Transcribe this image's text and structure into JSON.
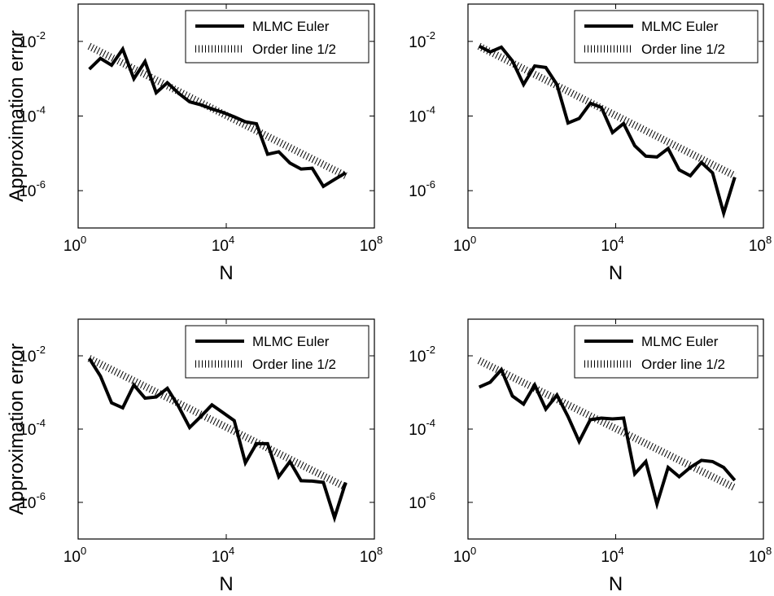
{
  "figure": {
    "background": "#ffffff",
    "line_color": "#000000"
  },
  "chart_data": [
    {
      "type": "line",
      "xlabel": "N",
      "ylabel": "Approximation error",
      "xscale": "log",
      "yscale": "log",
      "xlim": [
        1,
        100000000
      ],
      "ylim": [
        1e-07,
        0.1
      ],
      "x_ticks": [
        {
          "base": "10",
          "exp": "0"
        },
        {
          "base": "10",
          "exp": "4"
        },
        {
          "base": "10",
          "exp": "8"
        }
      ],
      "y_ticks": [
        {
          "base": "10",
          "exp": "-6"
        },
        {
          "base": "10",
          "exp": "-4"
        },
        {
          "base": "10",
          "exp": "-2"
        }
      ],
      "grid": false,
      "legend_position": "top-right",
      "series": [
        {
          "name": "MLMC Euler",
          "style": "solid-thick",
          "x": [
            2,
            4,
            8,
            16,
            32,
            64,
            128,
            256,
            512,
            1024,
            2048,
            4096,
            8192,
            16384,
            32768,
            65536,
            131072,
            262144,
            524288,
            1048576,
            2097152,
            4194304,
            8388608,
            16777216
          ],
          "y": [
            0.0018,
            0.0035,
            0.0023,
            0.0062,
            0.001,
            0.0029,
            0.00042,
            0.00078,
            0.00041,
            0.00024,
            0.0002,
            0.000155,
            0.000125,
            9.5e-05,
            7e-05,
            6.2e-05,
            9.5e-06,
            1.1e-05,
            5.5e-06,
            3.8e-06,
            4e-06,
            1.3e-06,
            2e-06,
            3e-06
          ]
        },
        {
          "name": "Order line 1/2",
          "style": "dotted",
          "x": [
            2,
            16777216
          ],
          "y": [
            0.0074,
            2.5e-06
          ]
        }
      ]
    },
    {
      "type": "line",
      "xlabel": "N",
      "ylabel": "",
      "xscale": "log",
      "yscale": "log",
      "xlim": [
        1,
        100000000
      ],
      "ylim": [
        1e-07,
        0.1
      ],
      "x_ticks": [
        {
          "base": "10",
          "exp": "0"
        },
        {
          "base": "10",
          "exp": "4"
        },
        {
          "base": "10",
          "exp": "8"
        }
      ],
      "y_ticks": [
        {
          "base": "10",
          "exp": "-6"
        },
        {
          "base": "10",
          "exp": "-4"
        },
        {
          "base": "10",
          "exp": "-2"
        }
      ],
      "grid": false,
      "legend_position": "top-right",
      "series": [
        {
          "name": "MLMC Euler",
          "style": "solid-thick",
          "x": [
            2,
            4,
            8,
            16,
            32,
            64,
            128,
            256,
            512,
            1024,
            2048,
            4096,
            8192,
            16384,
            32768,
            65536,
            131072,
            262144,
            524288,
            1048576,
            2097152,
            4194304,
            8388608,
            16777216
          ],
          "y": [
            0.0075,
            0.0052,
            0.007,
            0.003,
            0.0007,
            0.0022,
            0.002,
            0.0007,
            6.5e-05,
            8.6e-05,
            0.00022,
            0.00017,
            3.6e-05,
            6.3e-05,
            1.6e-05,
            8.4e-06,
            8e-06,
            1.35e-05,
            3.6e-06,
            2.5e-06,
            5.7e-06,
            3e-06,
            2.5e-07,
            2.3e-06
          ]
        },
        {
          "name": "Order line 1/2",
          "style": "dotted",
          "x": [
            2,
            16777216
          ],
          "y": [
            0.0074,
            2.5e-06
          ]
        }
      ]
    },
    {
      "type": "line",
      "xlabel": "N",
      "ylabel": "Approximation error",
      "xscale": "log",
      "yscale": "log",
      "xlim": [
        1,
        100000000
      ],
      "ylim": [
        1e-07,
        0.1
      ],
      "x_ticks": [
        {
          "base": "10",
          "exp": "0"
        },
        {
          "base": "10",
          "exp": "4"
        },
        {
          "base": "10",
          "exp": "8"
        }
      ],
      "y_ticks": [
        {
          "base": "10",
          "exp": "-6"
        },
        {
          "base": "10",
          "exp": "-4"
        },
        {
          "base": "10",
          "exp": "-2"
        }
      ],
      "grid": false,
      "legend_position": "top-right",
      "series": [
        {
          "name": "MLMC Euler",
          "style": "solid-thick",
          "x": [
            2,
            4,
            8,
            16,
            32,
            64,
            128,
            256,
            512,
            1024,
            2048,
            4096,
            8192,
            16384,
            32768,
            65536,
            131072,
            262144,
            524288,
            1048576,
            2097152,
            4194304,
            8388608,
            16777216
          ],
          "y": [
            0.0085,
            0.0028,
            0.00052,
            0.00038,
            0.0016,
            0.0007,
            0.00075,
            0.0013,
            0.00042,
            0.00011,
            0.00022,
            0.00046,
            0.00028,
            0.00017,
            1.2e-05,
            4e-05,
            4e-05,
            5e-06,
            1.3e-05,
            3.9e-06,
            3.8e-06,
            3.5e-06,
            3.8e-07,
            3.5e-06
          ]
        },
        {
          "name": "Order line 1/2",
          "style": "dotted",
          "x": [
            2,
            16777216
          ],
          "y": [
            0.0085,
            2.6e-06
          ]
        }
      ]
    },
    {
      "type": "line",
      "xlabel": "N",
      "ylabel": "",
      "xscale": "log",
      "yscale": "log",
      "xlim": [
        1,
        100000000
      ],
      "ylim": [
        1e-07,
        0.1
      ],
      "x_ticks": [
        {
          "base": "10",
          "exp": "0"
        },
        {
          "base": "10",
          "exp": "4"
        },
        {
          "base": "10",
          "exp": "8"
        }
      ],
      "y_ticks": [
        {
          "base": "10",
          "exp": "-6"
        },
        {
          "base": "10",
          "exp": "-4"
        },
        {
          "base": "10",
          "exp": "-2"
        }
      ],
      "grid": false,
      "legend_position": "top-right",
      "series": [
        {
          "name": "MLMC Euler",
          "style": "solid-thick",
          "x": [
            2,
            4,
            8,
            16,
            32,
            64,
            128,
            256,
            512,
            1024,
            2048,
            4096,
            8192,
            16384,
            32768,
            65536,
            131072,
            262144,
            524288,
            1048576,
            2097152,
            4194304,
            8388608,
            16777216
          ],
          "y": [
            0.0014,
            0.0019,
            0.0042,
            0.0008,
            0.00048,
            0.0016,
            0.00035,
            0.00085,
            0.00022,
            4.6e-05,
            0.00018,
            0.0002,
            0.00019,
            0.0002,
            6e-06,
            1.3e-05,
            9e-07,
            9e-06,
            5e-06,
            9e-06,
            1.4e-05,
            1.3e-05,
            9e-06,
            4e-06
          ]
        },
        {
          "name": "Order line 1/2",
          "style": "dotted",
          "x": [
            2,
            16777216
          ],
          "y": [
            0.0074,
            2.5e-06
          ]
        }
      ]
    }
  ]
}
